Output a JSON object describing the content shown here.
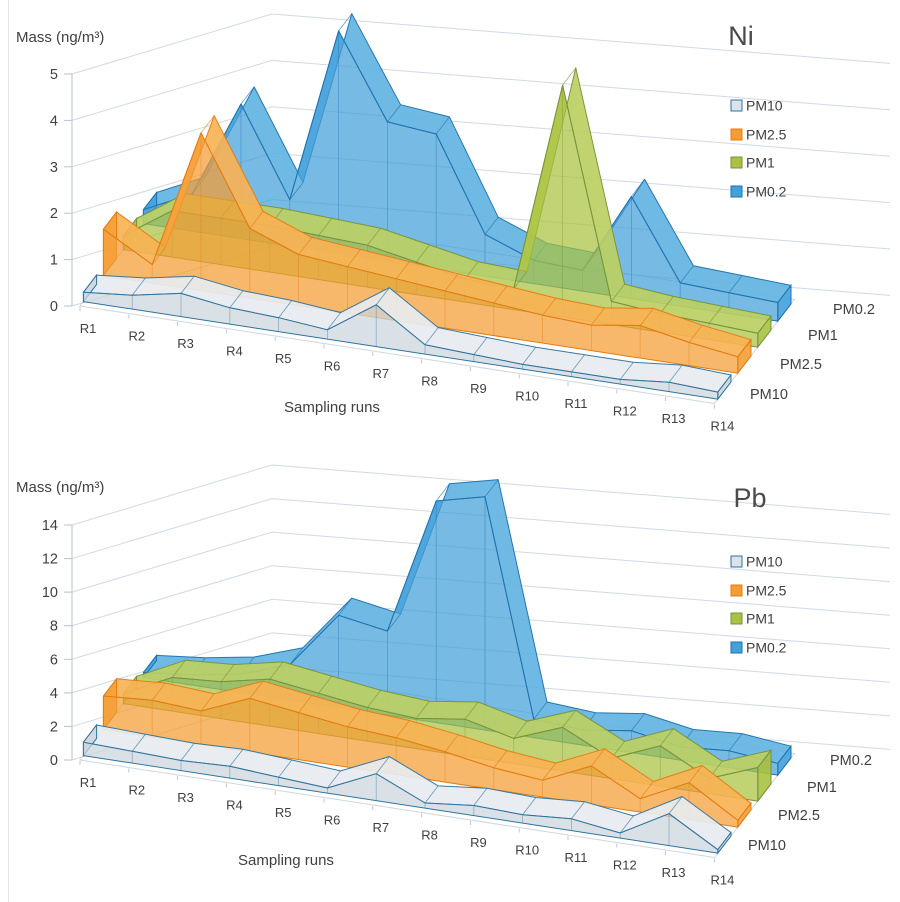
{
  "page": {
    "background": "#ffffff",
    "description": "Two 3D area charts of particulate-bound metal mass concentrations"
  },
  "chart_data": [
    {
      "type": "area",
      "variant": "3d-area",
      "title": "Ni",
      "xlabel": "Sampling runs",
      "ylabel": "Mass (ng/m³)",
      "ylim": [
        0,
        5
      ],
      "y_tick_step": 1,
      "grid": true,
      "legend": {
        "position": "right",
        "entries": [
          "PM10",
          "PM2.5",
          "PM1",
          "PM0.2"
        ]
      },
      "categories": [
        "R1",
        "R2",
        "R3",
        "R4",
        "R5",
        "R6",
        "R7",
        "R8",
        "R9",
        "R10",
        "R11",
        "R12",
        "R13",
        "R14"
      ],
      "series": [
        {
          "name": "PM10",
          "values": [
            0.2,
            0.3,
            0.5,
            0.35,
            0.3,
            0.2,
            0.9,
            0.2,
            0.15,
            0.1,
            0.1,
            0.1,
            0.2,
            0.15
          ]
        },
        {
          "name": "PM2.5",
          "values": [
            1.0,
            0.4,
            3.4,
            1.5,
            1.1,
            1.0,
            0.9,
            0.8,
            0.7,
            0.6,
            0.55,
            0.7,
            0.5,
            0.35
          ]
        },
        {
          "name": "PM1",
          "values": [
            0.3,
            1.0,
            1.0,
            1.0,
            0.95,
            0.9,
            0.7,
            0.5,
            0.45,
            5.0,
            0.5,
            0.4,
            0.35,
            0.3
          ]
        },
        {
          "name": "PM0.2",
          "values": [
            0.3,
            0.8,
            2.9,
            1.0,
            4.8,
            3.0,
            2.9,
            0.9,
            0.5,
            0.45,
            2.2,
            0.5,
            0.45,
            0.4
          ]
        }
      ]
    },
    {
      "type": "area",
      "variant": "3d-area",
      "title": "Pb",
      "xlabel": "Sampling runs",
      "ylabel": "Mass (ng/m³)",
      "ylim": [
        0,
        14
      ],
      "y_tick_step": 2,
      "grid": true,
      "legend": {
        "position": "right",
        "entries": [
          "PM10",
          "PM2.5",
          "PM1",
          "PM0.2"
        ]
      },
      "categories": [
        "R1",
        "R2",
        "R3",
        "R4",
        "R5",
        "R6",
        "R7",
        "R8",
        "R9",
        "R10",
        "R11",
        "R12",
        "R13",
        "R14"
      ],
      "series": [
        {
          "name": "PM10",
          "values": [
            0.8,
            0.7,
            0.6,
            0.7,
            0.5,
            0.3,
            1.6,
            0.3,
            0.6,
            0.5,
            0.7,
            0.3,
            1.9,
            0.2
          ]
        },
        {
          "name": "PM2.5",
          "values": [
            2.0,
            2.2,
            2.0,
            3.2,
            2.8,
            2.4,
            2.2,
            1.8,
            1.3,
            1.0,
            2.3,
            0.8,
            2.2,
            0.4
          ]
        },
        {
          "name": "PM1",
          "values": [
            0.6,
            2.0,
            2.2,
            2.8,
            2.4,
            2.0,
            1.8,
            2.2,
            1.5,
            2.6,
            1.2,
            2.4,
            0.9,
            2.0
          ]
        },
        {
          "name": "PM0.2",
          "values": [
            0.3,
            0.6,
            1.1,
            2.1,
            5.5,
            5.0,
            13.2,
            13.9,
            1.1,
            0.9,
            1.3,
            0.8,
            1.0,
            0.7
          ]
        }
      ]
    }
  ],
  "series_colors": {
    "PM10": {
      "fill": "#ccd6dd",
      "top": "#e7ecf0",
      "border": "#2f729c",
      "legend": "#dce4ea"
    },
    "PM2.5": {
      "fill": "#f59d33",
      "top": "#f8b255",
      "border": "#e07c12",
      "legend": "#f59d33"
    },
    "PM1": {
      "fill": "#a9c23f",
      "top": "#bccf62",
      "border": "#76923c",
      "legend": "#a9c23f"
    },
    "PM0.2": {
      "fill": "#42a0da",
      "top": "#63b4e2",
      "border": "#1d71ae",
      "legend": "#42a0da"
    }
  },
  "style_colors": {
    "grid": "#c9d2de",
    "axis": "#b7c1cd",
    "text": "#404040",
    "title": "#4a4a4a"
  }
}
